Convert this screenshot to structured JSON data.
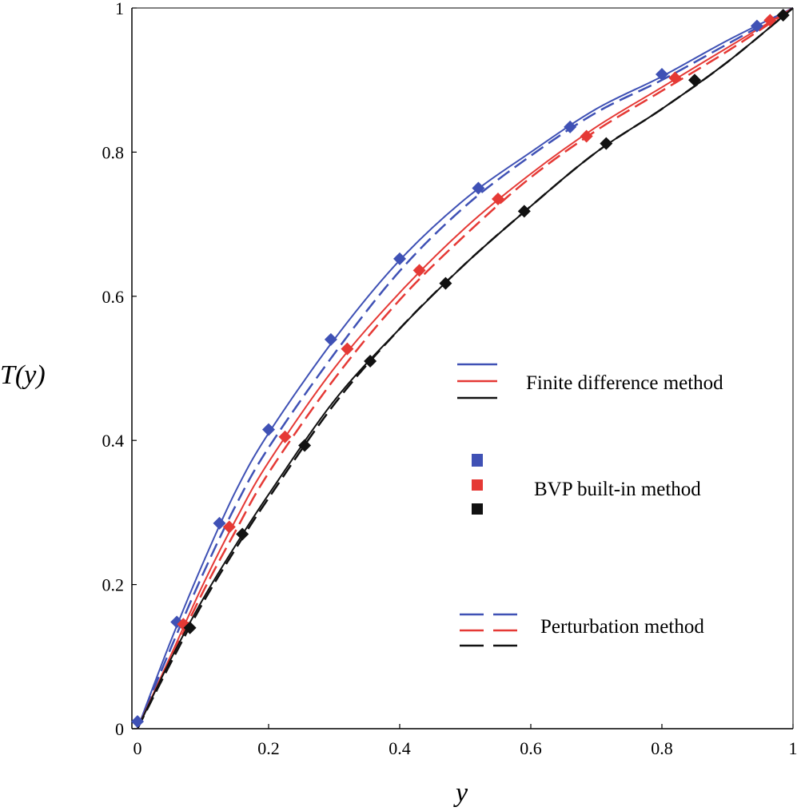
{
  "chart_data": {
    "type": "line",
    "title": "",
    "xlabel": "y",
    "ylabel": "T(y)",
    "xlim": [
      0,
      1
    ],
    "ylim": [
      0,
      1
    ],
    "grid": false,
    "x_ticks": [
      "0",
      "0.2",
      "0.4",
      "0.6",
      "0.8",
      "1"
    ],
    "y_ticks": [
      "0",
      "0.2",
      "0.4",
      "0.6",
      "0.8",
      "1"
    ],
    "legend_position": "right",
    "legend": {
      "finite_difference": "Finite difference method",
      "bvp": "BVP built-in method",
      "perturbation": "Perturbation method"
    },
    "series": [
      {
        "name": "blue",
        "color": "#3F51B5",
        "finite_difference": {
          "x": [
            0,
            0.05,
            0.1,
            0.15,
            0.2,
            0.3,
            0.4,
            0.5,
            0.6,
            0.7,
            0.8,
            0.9,
            1.0
          ],
          "y": [
            0,
            0.12,
            0.23,
            0.33,
            0.41,
            0.54,
            0.65,
            0.735,
            0.8,
            0.86,
            0.905,
            0.955,
            1.0
          ]
        },
        "perturbation": {
          "x": [
            0,
            0.05,
            0.1,
            0.15,
            0.2,
            0.3,
            0.4,
            0.5,
            0.6,
            0.7,
            0.8,
            0.9,
            1.0
          ],
          "y": [
            0,
            0.11,
            0.215,
            0.31,
            0.39,
            0.52,
            0.635,
            0.725,
            0.795,
            0.855,
            0.9,
            0.95,
            1.0
          ]
        },
        "bvp_points": {
          "x": [
            0,
            0.06,
            0.125,
            0.2,
            0.295,
            0.4,
            0.52,
            0.66,
            0.8,
            0.945
          ],
          "y": [
            0.01,
            0.148,
            0.285,
            0.415,
            0.54,
            0.652,
            0.75,
            0.835,
            0.908,
            0.975
          ]
        }
      },
      {
        "name": "red",
        "color": "#E53935",
        "finite_difference": {
          "x": [
            0,
            0.05,
            0.1,
            0.15,
            0.2,
            0.3,
            0.4,
            0.5,
            0.6,
            0.7,
            0.8,
            0.9,
            1.0
          ],
          "y": [
            0,
            0.1,
            0.2,
            0.29,
            0.37,
            0.5,
            0.605,
            0.695,
            0.77,
            0.835,
            0.89,
            0.945,
            1.0
          ]
        },
        "perturbation": {
          "x": [
            0,
            0.05,
            0.1,
            0.15,
            0.2,
            0.3,
            0.4,
            0.5,
            0.6,
            0.7,
            0.8,
            0.9,
            1.0
          ],
          "y": [
            0,
            0.095,
            0.19,
            0.275,
            0.355,
            0.485,
            0.595,
            0.685,
            0.765,
            0.83,
            0.885,
            0.94,
            1.0
          ]
        },
        "bvp_points": {
          "x": [
            0.07,
            0.14,
            0.225,
            0.32,
            0.43,
            0.55,
            0.685,
            0.82,
            0.965
          ],
          "y": [
            0.145,
            0.28,
            0.405,
            0.527,
            0.636,
            0.735,
            0.822,
            0.903,
            0.983
          ]
        }
      },
      {
        "name": "black",
        "color": "#111111",
        "finite_difference": {
          "x": [
            0,
            0.05,
            0.1,
            0.15,
            0.2,
            0.3,
            0.4,
            0.5,
            0.6,
            0.7,
            0.8,
            0.9,
            1.0
          ],
          "y": [
            0,
            0.095,
            0.18,
            0.255,
            0.325,
            0.455,
            0.555,
            0.645,
            0.725,
            0.8,
            0.86,
            0.925,
            1.0
          ]
        },
        "perturbation": {
          "x": [
            0,
            0.05,
            0.1,
            0.15,
            0.2,
            0.3,
            0.4,
            0.5,
            0.6,
            0.7,
            0.8,
            0.9,
            1.0
          ],
          "y": [
            0,
            0.09,
            0.175,
            0.25,
            0.32,
            0.45,
            0.555,
            0.645,
            0.725,
            0.8,
            0.86,
            0.925,
            1.0
          ]
        },
        "bvp_points": {
          "x": [
            0.08,
            0.16,
            0.255,
            0.355,
            0.47,
            0.59,
            0.715,
            0.85,
            0.985
          ],
          "y": [
            0.14,
            0.27,
            0.393,
            0.51,
            0.618,
            0.718,
            0.812,
            0.9,
            0.99
          ]
        }
      }
    ]
  }
}
